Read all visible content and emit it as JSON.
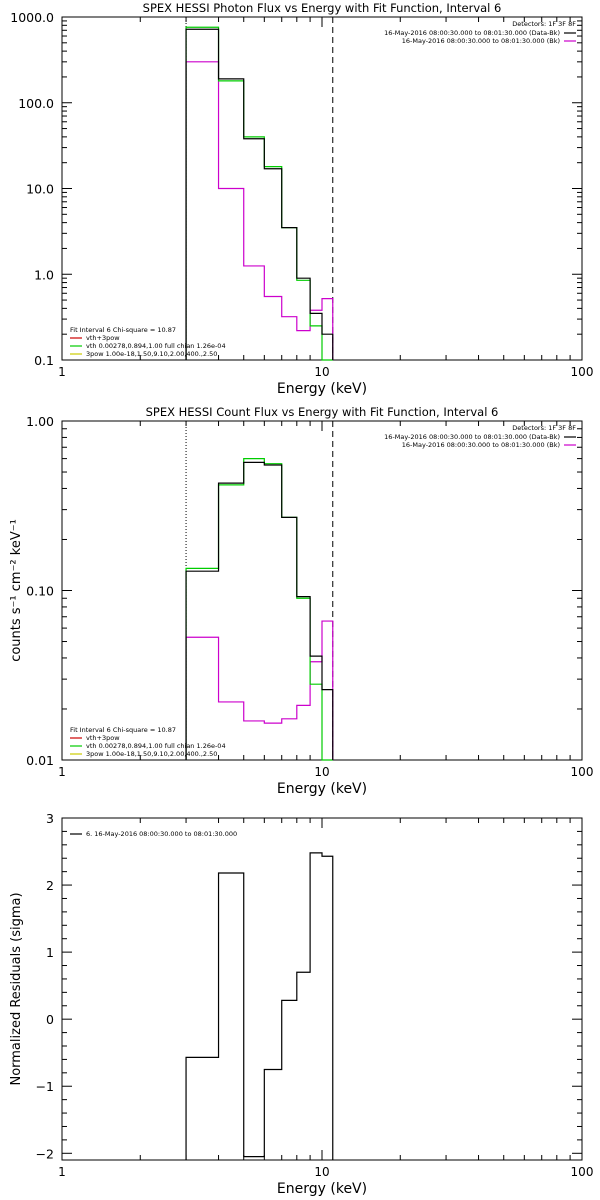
{
  "chart_data": [
    {
      "type": "line",
      "step": true,
      "title": "SPEX HESSI Photon Flux vs Energy with Fit Function, Interval 6",
      "xlabel": "Energy (keV)",
      "ylabel": "",
      "xscale": "log",
      "yscale": "log",
      "xlim": [
        1,
        100
      ],
      "ylim": [
        0.1,
        1000
      ],
      "x_ticks": [
        "1",
        "10",
        "100"
      ],
      "y_ticks": [
        "0.1",
        "1.0",
        "10.0",
        "100.0",
        "1000.0"
      ],
      "x_edges": [
        3,
        4,
        5,
        6,
        7,
        8,
        9,
        10,
        11
      ],
      "vlines": [
        {
          "x": 3,
          "style": "dotted"
        },
        {
          "x": 11,
          "style": "dashed"
        }
      ],
      "legend_right": {
        "header": "Detectors: 1F 3F 8F",
        "entries": [
          {
            "text": "16-May-2016 08:00:30.000 to 08:01:30.000 (Data-Bk)",
            "color": "#000000"
          },
          {
            "text": "16-May-2016 08:00:30.000 to 08:01:30.000 (Bk)",
            "color": "#cc00cc"
          }
        ]
      },
      "legend_left": {
        "header": "Fit Interval 6   Chi-square = 10.87",
        "entries": [
          {
            "text": "vth+3pow",
            "color": "#cc0000"
          },
          {
            "text": "vth 0.00278,0.894,1.00   full chian 1.26e-04",
            "color": "#00cc00"
          },
          {
            "text": "3pow 1.00e-18,1.50,9.10,2.00,400.,2.50",
            "color": "#cccc00"
          }
        ]
      },
      "series": [
        {
          "color": "#000000",
          "values": [
            720,
            190,
            38,
            17,
            3.5,
            0.9,
            0.35,
            0.2
          ]
        },
        {
          "color": "#00cc00",
          "values": [
            760,
            180,
            40,
            18,
            3.5,
            0.85,
            0.25,
            0
          ]
        },
        {
          "color": "#cc00cc",
          "values": [
            300,
            10,
            1.25,
            0.55,
            0.32,
            0.22,
            0.38,
            0.52
          ]
        }
      ]
    },
    {
      "type": "line",
      "step": true,
      "title": "SPEX HESSI Count Flux vs Energy with Fit Function, Interval 6",
      "xlabel": "Energy (keV)",
      "ylabel": "counts s⁻¹ cm⁻² keV⁻¹",
      "xscale": "log",
      "yscale": "log",
      "xlim": [
        1,
        100
      ],
      "ylim": [
        0.01,
        1
      ],
      "x_ticks": [
        "1",
        "10",
        "100"
      ],
      "y_ticks": [
        "0.01",
        "0.10",
        "1.00"
      ],
      "x_edges": [
        3,
        4,
        5,
        6,
        7,
        8,
        9,
        10,
        11
      ],
      "vlines": [
        {
          "x": 3,
          "style": "dotted"
        },
        {
          "x": 11,
          "style": "dashed"
        }
      ],
      "legend_right": {
        "header": "Detectors: 1F 3F 8F",
        "entries": [
          {
            "text": "16-May-2016 08:00:30.000 to 08:01:30.000 (Data-Bk)",
            "color": "#000000"
          },
          {
            "text": "16-May-2016 08:00:30.000 to 08:01:30.000 (Bk)",
            "color": "#cc00cc"
          }
        ]
      },
      "legend_left": {
        "header": "Fit Interval 6   Chi-square = 10.87",
        "entries": [
          {
            "text": "vth+3pow",
            "color": "#cc0000"
          },
          {
            "text": "vth 0.00278,0.894,1.00   full chian 1.26e-04",
            "color": "#00cc00"
          },
          {
            "text": "3pow 1.00e-18,1.50,9.10,2.00,400.,2.50",
            "color": "#cccc00"
          }
        ]
      },
      "series": [
        {
          "color": "#000000",
          "values": [
            0.13,
            0.43,
            0.57,
            0.55,
            0.27,
            0.092,
            0.041,
            0.026
          ]
        },
        {
          "color": "#00cc00",
          "values": [
            0.135,
            0.42,
            0.6,
            0.56,
            0.27,
            0.09,
            0.028,
            0
          ]
        },
        {
          "color": "#cc00cc",
          "values": [
            0.053,
            0.022,
            0.017,
            0.0165,
            0.0175,
            0.021,
            0.038,
            0.066
          ]
        }
      ]
    },
    {
      "type": "line",
      "step": true,
      "title": "",
      "xlabel": "Energy (keV)",
      "ylabel": "Normalized Residuals (sigma)",
      "xscale": "log",
      "yscale": "linear",
      "xlim": [
        1,
        100
      ],
      "ylim": [
        -2.1,
        3
      ],
      "x_ticks": [
        "1",
        "10",
        "100"
      ],
      "y_ticks": [
        "−2",
        "−1",
        "0",
        "1",
        "2",
        "3"
      ],
      "x_edges": [
        3,
        4,
        5,
        6,
        7,
        8,
        9,
        10,
        11
      ],
      "vlines": [],
      "legend_right": null,
      "legend_left": {
        "header": "",
        "entries": [
          {
            "text": "6. 16-May-2016 08:00:30.000 to 08:01:30.000",
            "color": "#000000"
          }
        ]
      },
      "series": [
        {
          "color": "#000000",
          "values": [
            -0.57,
            2.18,
            -2.05,
            -0.75,
            0.28,
            0.7,
            2.48,
            2.43
          ]
        }
      ]
    }
  ]
}
